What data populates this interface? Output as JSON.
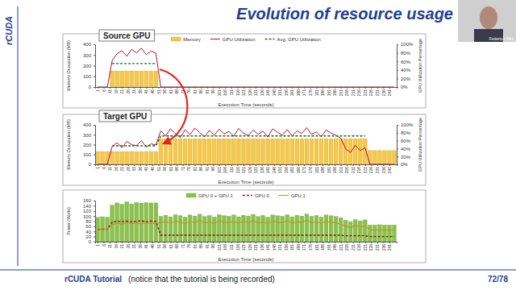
{
  "slide_title": "Evolution of resource usage",
  "logo": "rCUDA",
  "presenter": "Federico Silla",
  "footer": {
    "title": "rCUDA Tutorial",
    "note": "(notice that the tutorial is being recorded)",
    "page": "72/78"
  },
  "chart_data": [
    {
      "type": "bar",
      "title": "Source GPU",
      "legend": "top",
      "x_label": "Execution Time (seconds)",
      "y_label": "Memory Occupation (MB)",
      "y2_label": "GPU Utilization Percentage",
      "x": [
        1,
        5,
        9,
        13,
        17,
        21,
        25,
        29,
        33,
        37,
        41,
        45,
        49,
        53,
        57,
        61,
        65,
        69,
        73,
        77,
        81,
        85,
        89,
        93,
        97,
        101,
        105,
        109,
        113,
        117,
        121,
        125,
        129,
        133,
        137,
        141,
        145,
        149,
        153,
        157,
        161,
        165,
        169,
        173,
        177,
        181,
        185,
        189,
        193,
        197,
        201,
        205,
        209,
        213,
        217,
        221,
        225,
        229,
        233,
        237,
        241,
        245
      ],
      "xlim": [
        -1,
        247
      ],
      "xticks": [
        1,
        6,
        11,
        16,
        21,
        26,
        31,
        36,
        41,
        46,
        51,
        56,
        61,
        66,
        71,
        76,
        81,
        86,
        91,
        96,
        101,
        106,
        111,
        116,
        121,
        126,
        131,
        136,
        141,
        146,
        151,
        156,
        161,
        166,
        171,
        176,
        181,
        186,
        191,
        196,
        201,
        206,
        211,
        216,
        221,
        226,
        231,
        236,
        241
      ],
      "ylim": [
        0,
        400
      ],
      "yticks": [
        0,
        100,
        200,
        300,
        400
      ],
      "y2lim": [
        0,
        100
      ],
      "y2ticks": [
        {
          "value": 0,
          "label": "0%"
        },
        {
          "value": 20,
          "label": "20%"
        },
        {
          "value": 40,
          "label": "40%"
        },
        {
          "value": 60,
          "label": "60%"
        },
        {
          "value": 80,
          "label": "80%"
        },
        {
          "value": 100,
          "label": "100%"
        }
      ],
      "series": [
        {
          "name": "Memory",
          "type": "bar",
          "color": "#f7c845",
          "values": [
            0,
            0,
            0,
            150,
            150,
            150,
            150,
            150,
            150,
            150,
            150,
            150,
            150,
            0,
            0,
            0,
            0,
            0,
            0,
            0,
            0,
            0,
            0,
            0,
            0,
            0,
            0,
            0,
            0,
            0,
            0,
            0,
            0,
            0,
            0,
            0,
            0,
            0,
            0,
            0,
            0,
            0,
            0,
            0,
            0,
            0,
            0,
            0,
            0,
            0,
            0,
            0,
            0,
            0,
            0,
            0,
            0,
            0,
            0,
            0,
            0,
            0
          ]
        },
        {
          "name": "GPU Utilization",
          "type": "line",
          "color": "#b5122f",
          "axis": "y2",
          "values": [
            0,
            0,
            0,
            62,
            78,
            85,
            72,
            88,
            80,
            91,
            76,
            84,
            79,
            0,
            0,
            0,
            0,
            0,
            0,
            0,
            0,
            0,
            0,
            0,
            0,
            0,
            0,
            0,
            0,
            0,
            0,
            0,
            0,
            0,
            0,
            0,
            0,
            0,
            0,
            0,
            0,
            0,
            0,
            0,
            0,
            0,
            0,
            0,
            0,
            0,
            0,
            0,
            0,
            0,
            0,
            0,
            0,
            0,
            0,
            0,
            0,
            0
          ]
        },
        {
          "name": "Avg. GPU Utilization",
          "type": "line",
          "color": "#1a6b2f",
          "line_style": "dashed",
          "axis": "y2",
          "values": [
            null,
            null,
            null,
            55,
            55,
            55,
            55,
            55,
            55,
            55,
            55,
            55,
            55,
            null,
            null,
            null,
            null,
            null,
            null,
            null,
            null,
            null,
            null,
            null,
            null,
            null,
            null,
            null,
            null,
            null,
            null,
            null,
            null,
            null,
            null,
            null,
            null,
            null,
            null,
            null,
            null,
            null,
            null,
            null,
            null,
            null,
            null,
            null,
            null,
            null,
            null,
            null,
            null,
            null,
            null,
            null,
            null,
            null,
            null,
            null,
            null,
            null
          ]
        }
      ]
    },
    {
      "type": "bar",
      "title": "Target GPU",
      "x_label": "Execution Time (seconds)",
      "y_label": "Memory Occupation (MB)",
      "y2_label": "GPU Utilization Percentage",
      "x": [
        1,
        5,
        9,
        13,
        17,
        21,
        25,
        29,
        33,
        37,
        41,
        45,
        49,
        53,
        57,
        61,
        65,
        69,
        73,
        77,
        81,
        85,
        89,
        93,
        97,
        101,
        105,
        109,
        113,
        117,
        121,
        125,
        129,
        133,
        137,
        141,
        145,
        149,
        153,
        157,
        161,
        165,
        169,
        173,
        177,
        181,
        185,
        189,
        193,
        197,
        201,
        205,
        209,
        213,
        217,
        221,
        225,
        229,
        233,
        237,
        241,
        245
      ],
      "xlim": [
        -1,
        247
      ],
      "xticks": [
        1,
        6,
        11,
        16,
        21,
        26,
        31,
        36,
        41,
        46,
        51,
        56,
        61,
        66,
        71,
        76,
        81,
        86,
        91,
        96,
        101,
        106,
        111,
        116,
        121,
        126,
        131,
        136,
        141,
        146,
        151,
        156,
        161,
        166,
        171,
        176,
        181,
        186,
        191,
        196,
        201,
        206,
        211,
        216,
        221,
        226,
        231,
        236,
        241
      ],
      "ylim": [
        0,
        400
      ],
      "yticks": [
        0,
        100,
        200,
        300,
        400
      ],
      "y2lim": [
        0,
        100
      ],
      "y2ticks": [
        {
          "value": 0,
          "label": "0%"
        },
        {
          "value": 20,
          "label": "20%"
        },
        {
          "value": 40,
          "label": "40%"
        },
        {
          "value": 60,
          "label": "60%"
        },
        {
          "value": 80,
          "label": "80%"
        },
        {
          "value": 100,
          "label": "100%"
        }
      ],
      "series": [
        {
          "type": "bar",
          "color": "#f7c845",
          "values": [
            130,
            130,
            130,
            130,
            130,
            130,
            130,
            130,
            130,
            130,
            130,
            130,
            130,
            260,
            260,
            260,
            260,
            260,
            260,
            260,
            260,
            260,
            260,
            260,
            260,
            260,
            260,
            260,
            260,
            260,
            260,
            260,
            260,
            260,
            260,
            260,
            260,
            260,
            260,
            260,
            260,
            260,
            260,
            260,
            260,
            260,
            260,
            260,
            260,
            260,
            260,
            260,
            260,
            260,
            260,
            260,
            140,
            140,
            140,
            140,
            140,
            140
          ]
        },
        {
          "type": "line",
          "color": "#b5122f",
          "axis": "y2",
          "values": [
            0,
            0,
            0,
            45,
            55,
            42,
            58,
            50,
            47,
            60,
            44,
            52,
            49,
            85,
            72,
            90,
            78,
            68,
            88,
            75,
            92,
            80,
            70,
            86,
            74,
            89,
            77,
            83,
            71,
            91,
            79,
            73,
            87,
            76,
            84,
            69,
            90,
            81,
            74,
            88,
            72,
            85,
            78,
            93,
            76,
            82,
            70,
            87,
            79,
            74,
            66,
            40,
            30,
            48,
            35,
            42,
            0,
            0,
            0,
            0,
            0,
            0
          ]
        },
        {
          "type": "line",
          "color": "#1a6b2f",
          "line_style": "dashed",
          "axis": "y2",
          "values": [
            null,
            null,
            null,
            47,
            47,
            47,
            47,
            47,
            47,
            47,
            47,
            47,
            47,
            72,
            72,
            72,
            72,
            72,
            72,
            72,
            72,
            72,
            72,
            72,
            72,
            72,
            72,
            72,
            72,
            72,
            72,
            72,
            72,
            72,
            72,
            72,
            72,
            72,
            72,
            72,
            72,
            72,
            72,
            72,
            72,
            72,
            72,
            72,
            72,
            72,
            72,
            72,
            72,
            72,
            72,
            72,
            null,
            null,
            null,
            null,
            null,
            null
          ]
        }
      ]
    },
    {
      "type": "bar",
      "legend": "top",
      "x_label": "Execution Time (seconds)",
      "y_label": "Power (Watts)",
      "x": [
        1,
        5,
        9,
        13,
        17,
        21,
        25,
        29,
        33,
        37,
        41,
        45,
        49,
        53,
        57,
        61,
        65,
        69,
        73,
        77,
        81,
        85,
        89,
        93,
        97,
        101,
        105,
        109,
        113,
        117,
        121,
        125,
        129,
        133,
        137,
        141,
        145,
        149,
        153,
        157,
        161,
        165,
        169,
        173,
        177,
        181,
        185,
        189,
        193,
        197,
        201,
        205,
        209,
        213,
        217,
        221,
        225,
        229,
        233,
        237,
        241,
        245
      ],
      "xlim": [
        -1,
        247
      ],
      "xticks": [
        1,
        6,
        11,
        16,
        21,
        26,
        31,
        36,
        41,
        46,
        51,
        56,
        61,
        66,
        71,
        76,
        81,
        86,
        91,
        96,
        101,
        106,
        111,
        116,
        121,
        126,
        131,
        136,
        141,
        146,
        151,
        156,
        161,
        166,
        171,
        176,
        181,
        186,
        191,
        196,
        201,
        206,
        211,
        216,
        221,
        226,
        231,
        236,
        241
      ],
      "ylim": [
        0,
        160
      ],
      "yticks": [
        0,
        20,
        40,
        60,
        80,
        100,
        120,
        140,
        160
      ],
      "series": [
        {
          "name": "GPU 0 + GPU 1",
          "type": "bar",
          "color": "#8bc34a",
          "values": [
            95,
            97,
            95,
            142,
            151,
            146,
            155,
            147,
            152,
            150,
            152,
            151,
            151,
            99,
            103,
            97,
            105,
            101,
            95,
            104,
            100,
            107,
            98,
            102,
            96,
            105,
            101,
            99,
            104,
            97,
            103,
            100,
            106,
            98,
            102,
            95,
            104,
            101,
            99,
            105,
            97,
            103,
            100,
            108,
            99,
            102,
            96,
            104,
            101,
            98,
            93,
            83,
            78,
            86,
            81,
            85,
            65,
            65,
            66,
            65,
            65,
            65
          ]
        },
        {
          "name": "GPU 0",
          "type": "line",
          "color": "#8b1a1a",
          "line_style": "dashed",
          "values": [
            48,
            49,
            48,
            76,
            79,
            78,
            80,
            77,
            79,
            81,
            78,
            80,
            79,
            25,
            25,
            25,
            25,
            25,
            25,
            25,
            25,
            25,
            25,
            25,
            25,
            25,
            25,
            25,
            25,
            25,
            25,
            25,
            25,
            25,
            25,
            25,
            25,
            25,
            25,
            25,
            25,
            25,
            25,
            25,
            25,
            25,
            25,
            25,
            25,
            25,
            25,
            23,
            23,
            23,
            23,
            23,
            20,
            20,
            20,
            20,
            20,
            20
          ]
        },
        {
          "name": "GPU 1",
          "type": "line",
          "color": "#d4861a",
          "values": [
            47,
            48,
            47,
            66,
            72,
            68,
            75,
            70,
            73,
            69,
            74,
            71,
            72,
            74,
            78,
            72,
            80,
            76,
            70,
            79,
            75,
            82,
            73,
            77,
            71,
            80,
            76,
            74,
            79,
            72,
            78,
            75,
            81,
            73,
            77,
            70,
            79,
            76,
            74,
            80,
            72,
            78,
            75,
            83,
            74,
            77,
            71,
            79,
            76,
            73,
            68,
            60,
            55,
            63,
            58,
            62,
            45,
            45,
            46,
            45,
            45,
            45
          ]
        }
      ]
    }
  ]
}
